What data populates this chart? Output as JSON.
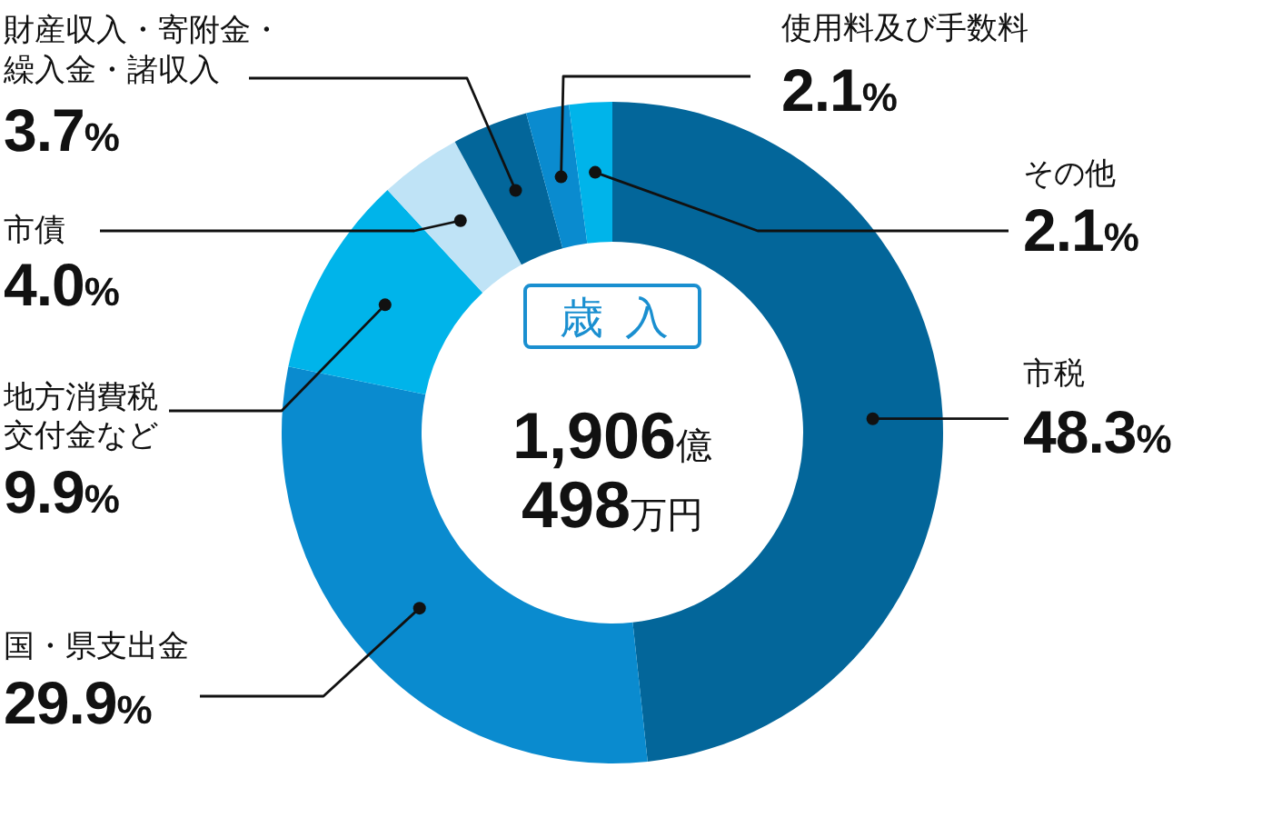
{
  "chart_data": {
    "type": "donut",
    "categories": [
      "市税",
      "国・県支出金",
      "地方消費税交付金など",
      "市債",
      "財産収入・寄附金・繰入金・諸収入",
      "使用料及び手数料",
      "その他"
    ],
    "values": [
      48.3,
      29.9,
      9.9,
      4.0,
      3.7,
      2.1,
      2.1
    ],
    "colors": [
      "#03669a",
      "#0a8bcf",
      "#00b4ea",
      "#bfe3f6",
      "#03669a",
      "#0a8bcf",
      "#00b4ea"
    ],
    "value_labels": [
      "48.3%",
      "29.9%",
      "9.9%",
      "4.0%",
      "3.7%",
      "2.1%",
      "2.1%"
    ],
    "annotations": [
      "歳入",
      "1,906億",
      "498万円"
    ]
  }
}
